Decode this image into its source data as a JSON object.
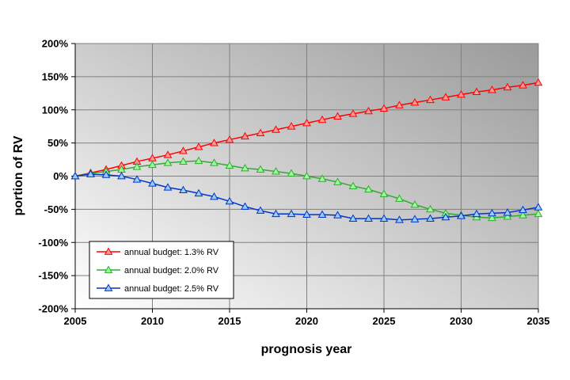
{
  "chart_data": {
    "type": "line",
    "title": "",
    "xlabel": "prognosis year",
    "ylabel": "portion of RV",
    "xlim": [
      2005,
      2035
    ],
    "ylim": [
      -200,
      200
    ],
    "x_ticks": [
      "2005",
      "2010",
      "2015",
      "2020",
      "2025",
      "2030",
      "2035"
    ],
    "y_ticks": [
      "200%",
      "150%",
      "100%",
      "50%",
      "0%",
      "-50%",
      "-100%",
      "-150%",
      "-200%"
    ],
    "grid": true,
    "legend_position": "bottom-left",
    "x": [
      2005,
      2006,
      2007,
      2008,
      2009,
      2010,
      2011,
      2012,
      2013,
      2014,
      2015,
      2016,
      2017,
      2018,
      2019,
      2020,
      2021,
      2022,
      2023,
      2024,
      2025,
      2026,
      2027,
      2028,
      2029,
      2030,
      2031,
      2032,
      2033,
      2034,
      2035
    ],
    "series": [
      {
        "name": "annual budget: 1.3% RV",
        "color": "#ff0000",
        "marker_fill": "#ff9999",
        "values": [
          0,
          5,
          10,
          16,
          22,
          27,
          32,
          38,
          44,
          50,
          55,
          60,
          65,
          70,
          75,
          80,
          85,
          90,
          94,
          98,
          102,
          107,
          111,
          115,
          119,
          123,
          127,
          130,
          134,
          137,
          141
        ]
      },
      {
        "name": "annual budget: 2.0% RV",
        "color": "#33aa33",
        "marker_fill": "#99ff99",
        "values": [
          0,
          4,
          7,
          10,
          14,
          17,
          20,
          22,
          23,
          20,
          16,
          12,
          10,
          7,
          4,
          0,
          -4,
          -9,
          -15,
          -20,
          -27,
          -34,
          -43,
          -50,
          -56,
          -59,
          -62,
          -63,
          -61,
          -59,
          -57
        ]
      },
      {
        "name": "annual budget: 2.5% RV",
        "color": "#0033cc",
        "marker_fill": "#99ccff",
        "values": [
          0,
          3,
          2,
          0,
          -5,
          -11,
          -17,
          -21,
          -26,
          -31,
          -38,
          -46,
          -52,
          -57,
          -57,
          -58,
          -58,
          -59,
          -64,
          -64,
          -64,
          -66,
          -65,
          -64,
          -62,
          -60,
          -57,
          -56,
          -55,
          -51,
          -47
        ]
      }
    ]
  }
}
